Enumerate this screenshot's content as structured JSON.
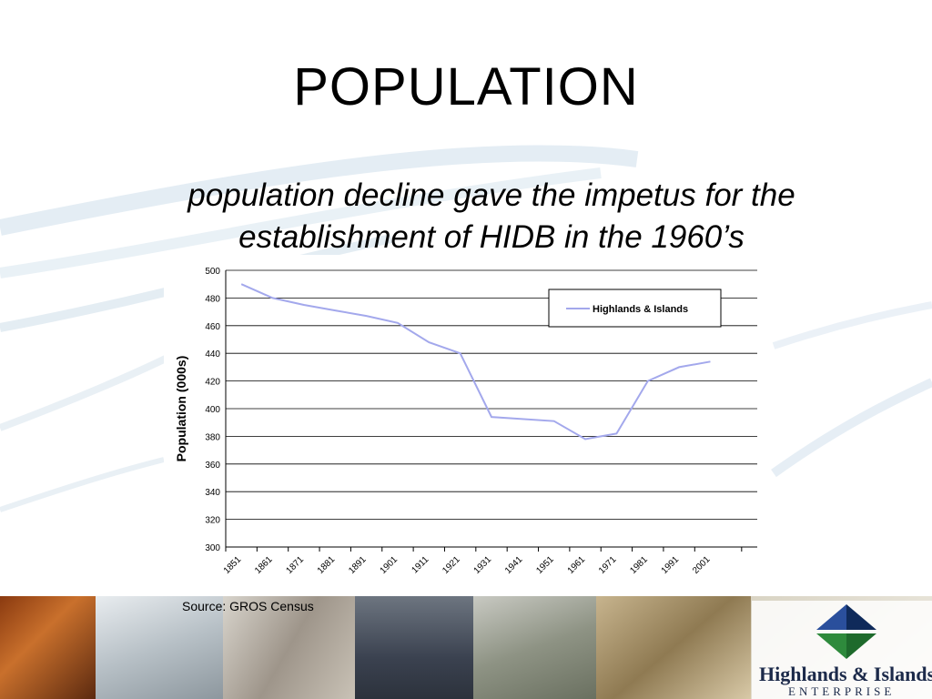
{
  "slide": {
    "title": "POPULATION",
    "subtitle": "population decline gave the impetus for the establishment of HIDB in the 1960’s",
    "source": "Source: GROS Census"
  },
  "logo": {
    "line1": "Highlands & Islands",
    "line2": "ENTERPRISE",
    "colors": [
      "#2a4f9c",
      "#2e8a3c",
      "#0f2a5a"
    ]
  },
  "chart_data": {
    "type": "line",
    "title": "",
    "xlabel": "",
    "ylabel": "Population (000s)",
    "ylim": [
      300,
      500
    ],
    "yticks": [
      300,
      320,
      340,
      360,
      380,
      400,
      420,
      440,
      460,
      480,
      500
    ],
    "xticks": [
      "1851",
      "1861",
      "1871",
      "1881",
      "1891",
      "1901",
      "1911",
      "1921",
      "1931",
      "1941",
      "1951",
      "1961",
      "1971",
      "1981",
      "1991",
      "2001"
    ],
    "xlim": [
      1846,
      2016
    ],
    "grid": true,
    "legend_position": "top-right",
    "series": [
      {
        "name": "Highlands & Islands",
        "color": "#a3a8ec",
        "x": [
          1851,
          1861,
          1871,
          1881,
          1891,
          1901,
          1911,
          1921,
          1931,
          1951,
          1961,
          1966,
          1971,
          1981,
          1991,
          2001
        ],
        "y": [
          490,
          480,
          475,
          471,
          467,
          462,
          448,
          440,
          394,
          391,
          378,
          380,
          382,
          420,
          430,
          434
        ]
      }
    ]
  }
}
